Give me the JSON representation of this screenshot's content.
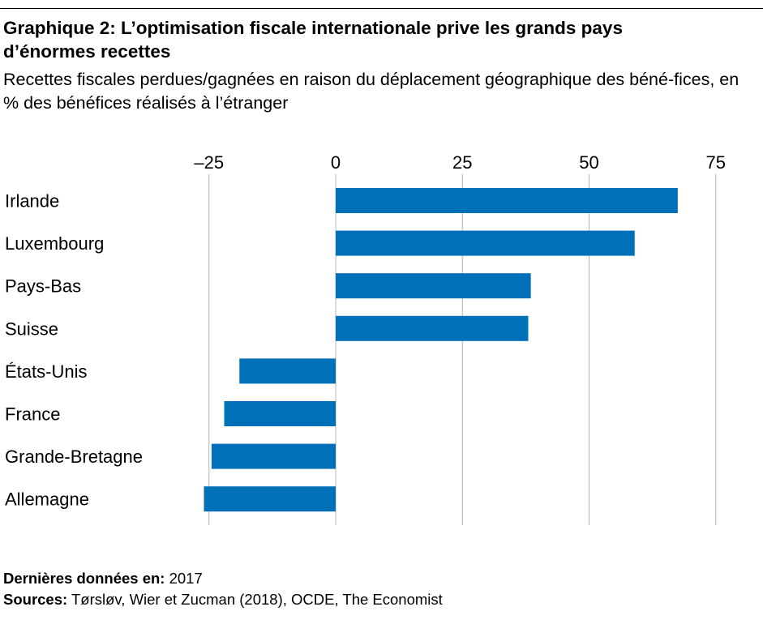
{
  "header": {
    "title": "Graphique 2: L’optimisation fiscale internationale prive les grands pays d’énormes recettes",
    "subtitle": "Recettes fiscales perdues/gagnées en raison du déplacement géographique des béné-fices, en % des bénéfices réalisés à l’étranger"
  },
  "chart_data": {
    "type": "bar",
    "orientation": "horizontal",
    "title": "Graphique 2: L’optimisation fiscale internationale prive les grands pays d’énormes recettes",
    "subtitle": "Recettes fiscales perdues/gagnées en raison du déplacement géographique des béné-fices, en % des bénéfices réalisés à l’étranger",
    "categories": [
      "Irlande",
      "Luxembourg",
      "Pays-Bas",
      "Suisse",
      "États-Unis",
      "France",
      "Grande-Bretagne",
      "Allemagne"
    ],
    "values": [
      67.5,
      59,
      38.5,
      38,
      -19,
      -22,
      -24.5,
      -26
    ],
    "x_ticks": [
      -25,
      0,
      25,
      50,
      75
    ],
    "x_tick_labels": [
      "–25",
      "0",
      "25",
      "50",
      "75"
    ],
    "xlim": [
      -27,
      78
    ],
    "xlabel": "",
    "ylabel": "",
    "grid": true,
    "axis_position": "top",
    "bar_color": "#0070b8",
    "grid_color": "#b4b4b4"
  },
  "footer": {
    "latest_label": "Dernières données en:",
    "latest_value": "2017",
    "sources_label": "Sources:",
    "sources_value": "Tørsløv, Wier et Zucman (2018), OCDE, The Economist"
  }
}
